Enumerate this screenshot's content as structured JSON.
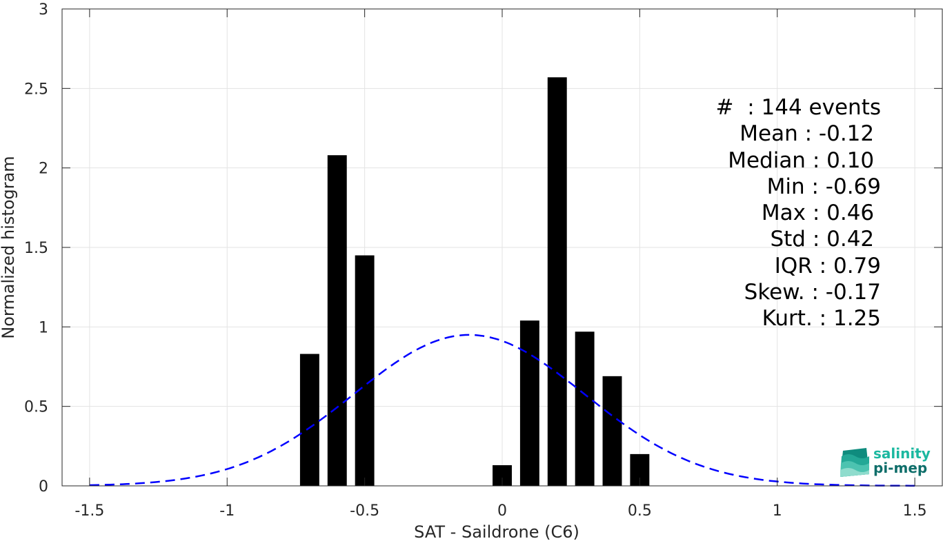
{
  "chart_data": {
    "type": "bar",
    "xlabel": "SAT - Saildrone (C6)",
    "ylabel": "Normalized histogram",
    "xlim": [
      -1.6,
      1.6
    ],
    "ylim": [
      0,
      3
    ],
    "xticks": [
      -1.5,
      -1,
      -0.5,
      0,
      0.5,
      1,
      1.5
    ],
    "xtick_labels": [
      "-1.5",
      "-1",
      "-0.5",
      "0",
      "0.5",
      "1",
      "1.5"
    ],
    "yticks": [
      0,
      0.5,
      1,
      1.5,
      2,
      2.5,
      3
    ],
    "ytick_labels": [
      "0",
      "0.5",
      "1",
      "1.5",
      "2",
      "2.5",
      "3"
    ],
    "grid": true,
    "bar_width": 0.07,
    "bars": [
      {
        "x": -0.7,
        "value": 0.83
      },
      {
        "x": -0.6,
        "value": 2.08
      },
      {
        "x": -0.5,
        "value": 1.45
      },
      {
        "x": 0.0,
        "value": 0.13
      },
      {
        "x": 0.1,
        "value": 1.04
      },
      {
        "x": 0.2,
        "value": 2.57
      },
      {
        "x": 0.3,
        "value": 0.97
      },
      {
        "x": 0.4,
        "value": 0.69
      },
      {
        "x": 0.5,
        "value": 0.2
      }
    ],
    "fit_curve": {
      "style": "dashed",
      "color": "#0000ff",
      "mean": -0.12,
      "std": 0.42,
      "x_range": [
        -1.5,
        1.5
      ]
    },
    "bar_color": "#000000"
  },
  "stats": [
    {
      "label": "#  ",
      "value": ": 144 events"
    },
    {
      "label": "Mean ",
      "value": ": -0.12 "
    },
    {
      "label": "Median ",
      "value": ": 0.10 "
    },
    {
      "label": "Min ",
      "value": ": -0.69"
    },
    {
      "label": "Max ",
      "value": ": 0.46 "
    },
    {
      "label": "Std ",
      "value": ": 0.42 "
    },
    {
      "label": "IQR ",
      "value": ": 0.79"
    },
    {
      "label": "Skew. ",
      "value": ": -0.17"
    },
    {
      "label": "Kurt. ",
      "value": ": 1.25"
    }
  ],
  "logo": {
    "line1": "salinity",
    "line2": "pi-mep",
    "icon": "salinity-pimep-logo-icon"
  }
}
